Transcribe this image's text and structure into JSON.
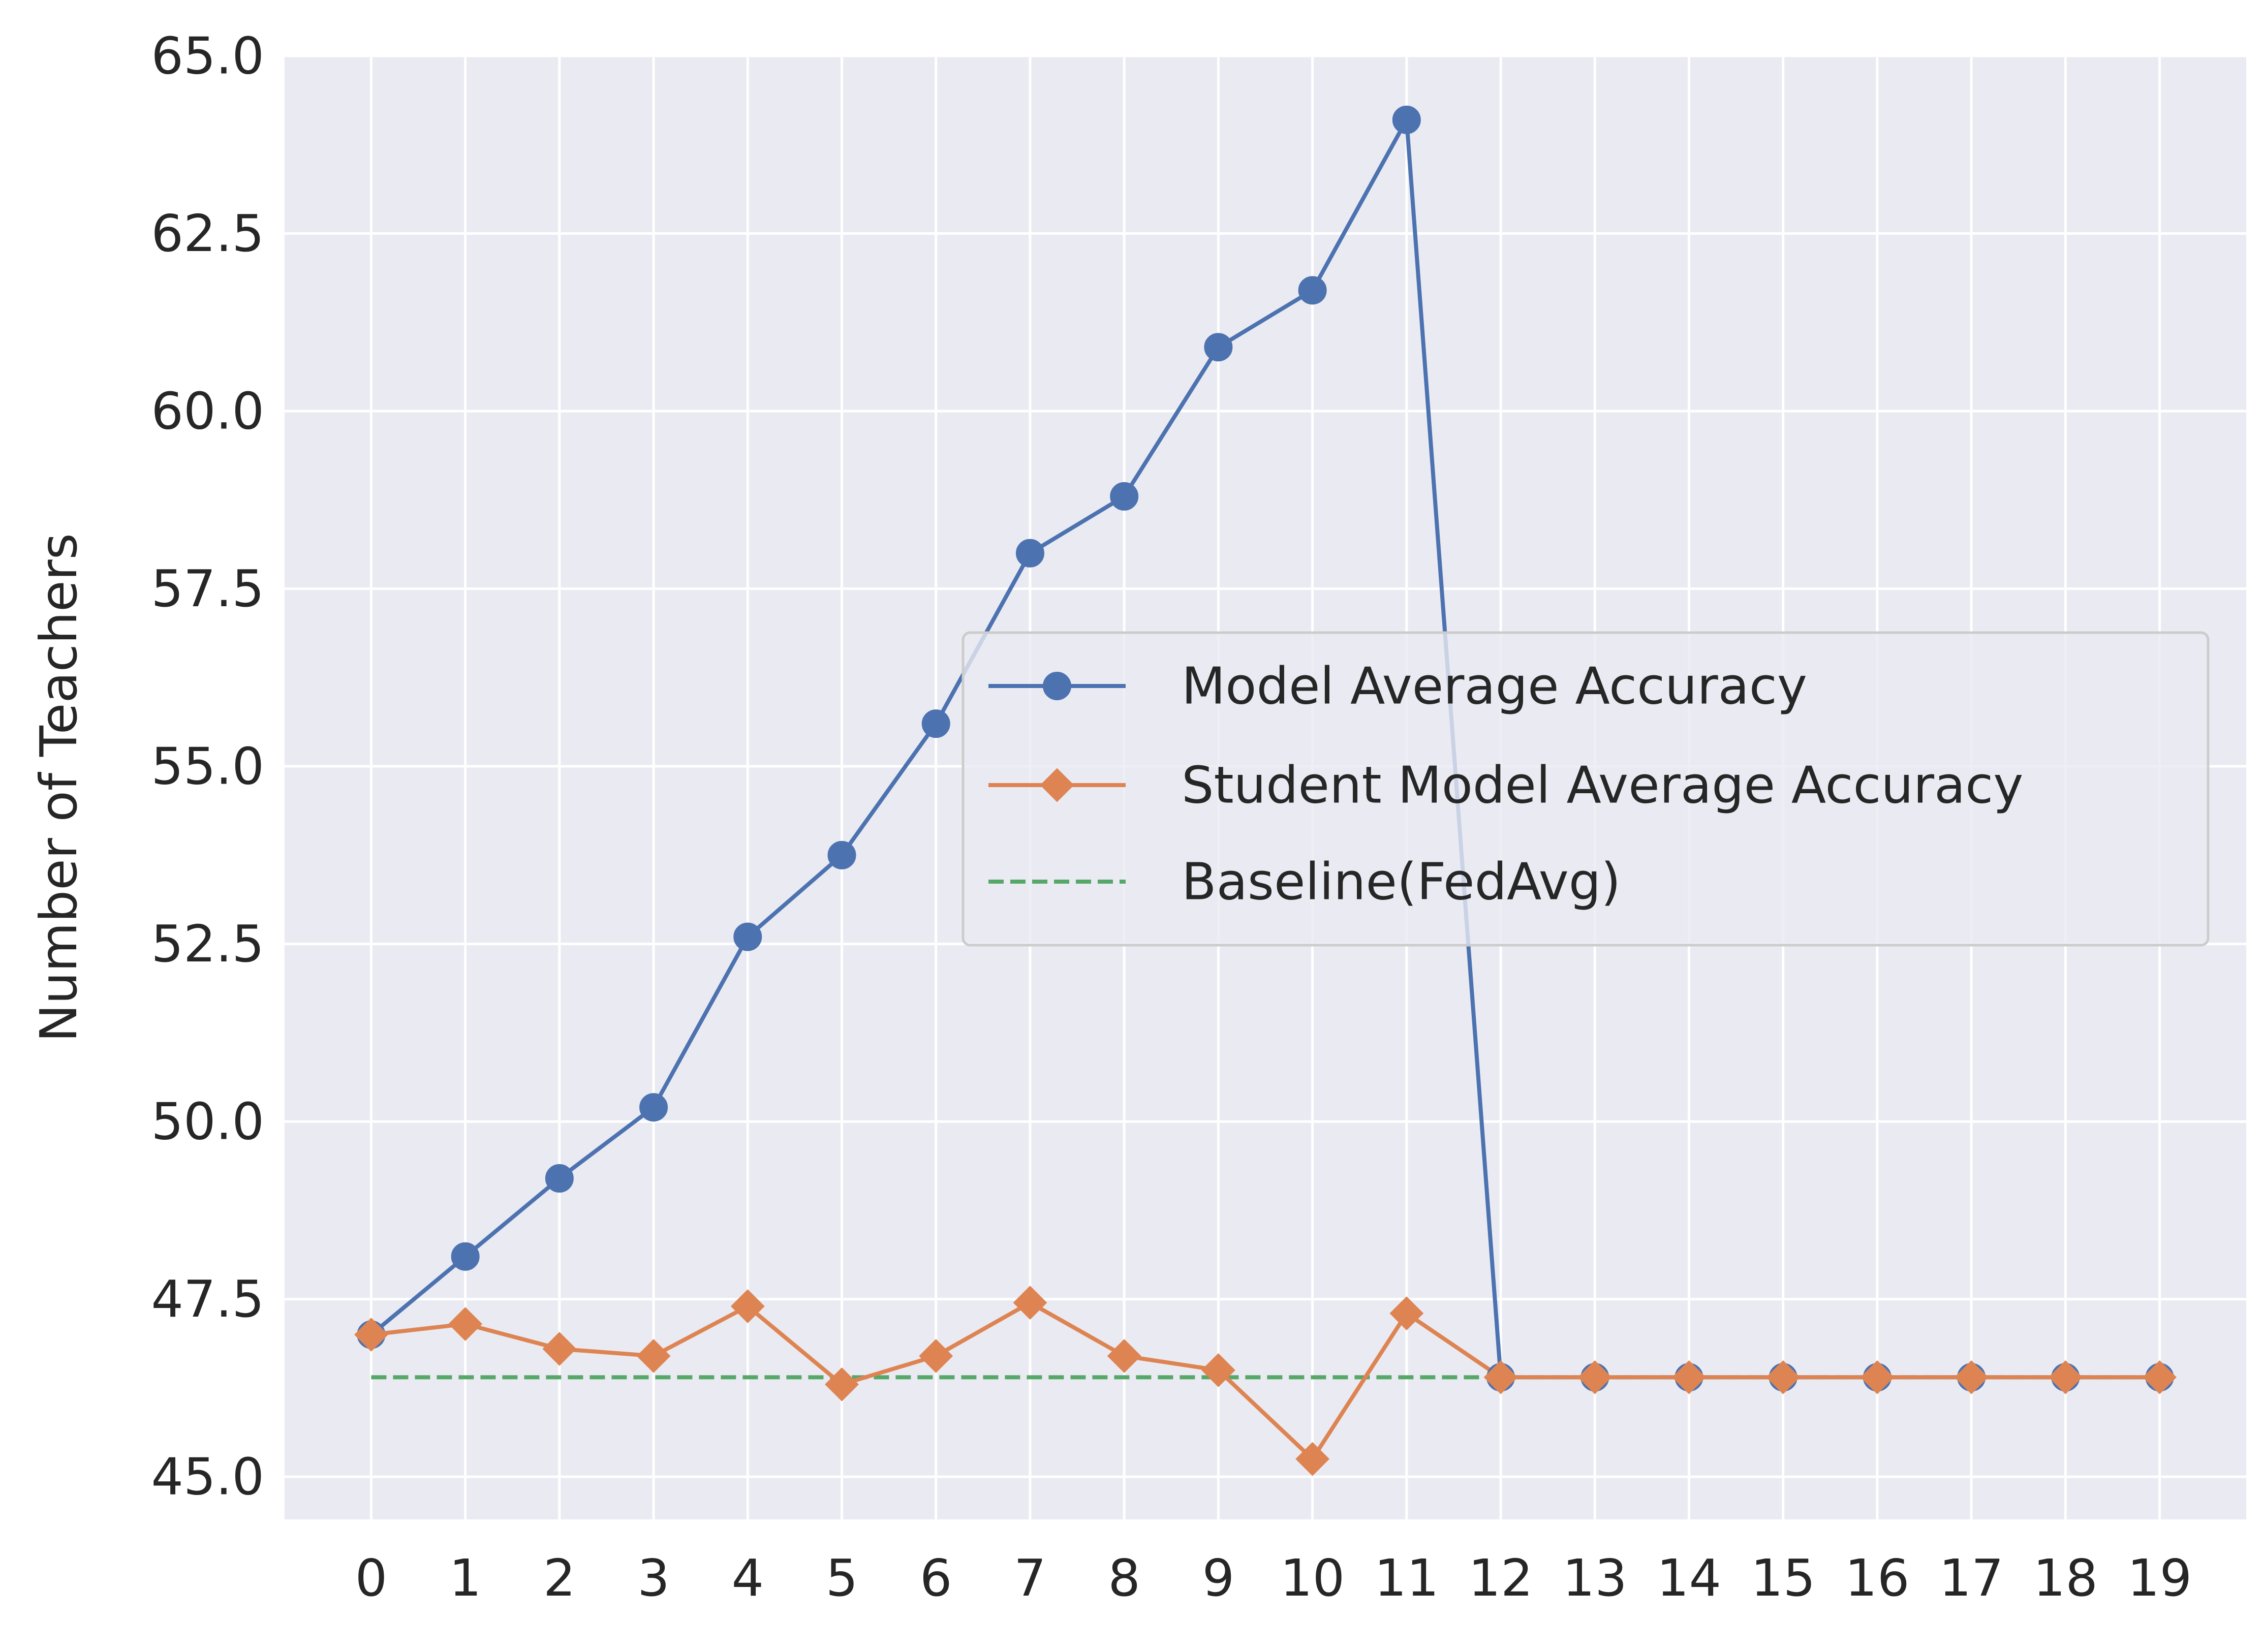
{
  "chart_data": {
    "type": "line",
    "title": "",
    "xlabel": "",
    "ylabel": "Number of Teachers",
    "x": [
      0,
      1,
      2,
      3,
      4,
      5,
      6,
      7,
      8,
      9,
      10,
      11,
      12,
      13,
      14,
      15,
      16,
      17,
      18,
      19
    ],
    "x_tick_labels": [
      "0",
      "1",
      "2",
      "3",
      "4",
      "5",
      "6",
      "7",
      "8",
      "9",
      "10",
      "11",
      "12",
      "13",
      "14",
      "15",
      "16",
      "17",
      "18",
      "19"
    ],
    "xlim": [
      -0.92,
      19.92
    ],
    "ylim": [
      44.4,
      65.0
    ],
    "y_ticks": [
      45.0,
      47.5,
      50.0,
      52.5,
      55.0,
      57.5,
      60.0,
      62.5,
      65.0
    ],
    "y_tick_labels": [
      "45.0",
      "47.5",
      "50.0",
      "52.5",
      "55.0",
      "57.5",
      "60.0",
      "62.5",
      "65.0"
    ],
    "grid": true,
    "legend_position": "center-right",
    "series": [
      {
        "name": "Model Average Accuracy",
        "color": "#4c72b0",
        "marker": "circle",
        "style": "solid",
        "values": [
          47.0,
          48.1,
          49.2,
          50.2,
          52.6,
          53.75,
          55.6,
          58.0,
          58.8,
          60.9,
          61.7,
          64.1,
          46.4,
          46.4,
          46.4,
          46.4,
          46.4,
          46.4,
          46.4,
          46.4
        ]
      },
      {
        "name": "Student Model Average Accuracy",
        "color": "#dd8452",
        "marker": "diamond",
        "style": "solid",
        "values": [
          47.0,
          47.15,
          46.8,
          46.7,
          47.4,
          46.3,
          46.7,
          47.45,
          46.7,
          46.5,
          45.25,
          47.3,
          46.4,
          46.4,
          46.4,
          46.4,
          46.4,
          46.4,
          46.4,
          46.4
        ]
      },
      {
        "name": "Baseline(FedAvg)",
        "color": "#55a868",
        "marker": "none",
        "style": "dashed",
        "values": [
          46.4,
          46.4,
          46.4,
          46.4,
          46.4,
          46.4,
          46.4,
          46.4,
          46.4,
          46.4,
          46.4,
          46.4,
          46.4,
          46.4,
          46.4,
          46.4,
          46.4,
          46.4,
          46.4,
          46.4
        ]
      }
    ],
    "colors": {
      "plot_background": "#eaeaf2",
      "grid": "#ffffff",
      "text": "#262626"
    }
  }
}
